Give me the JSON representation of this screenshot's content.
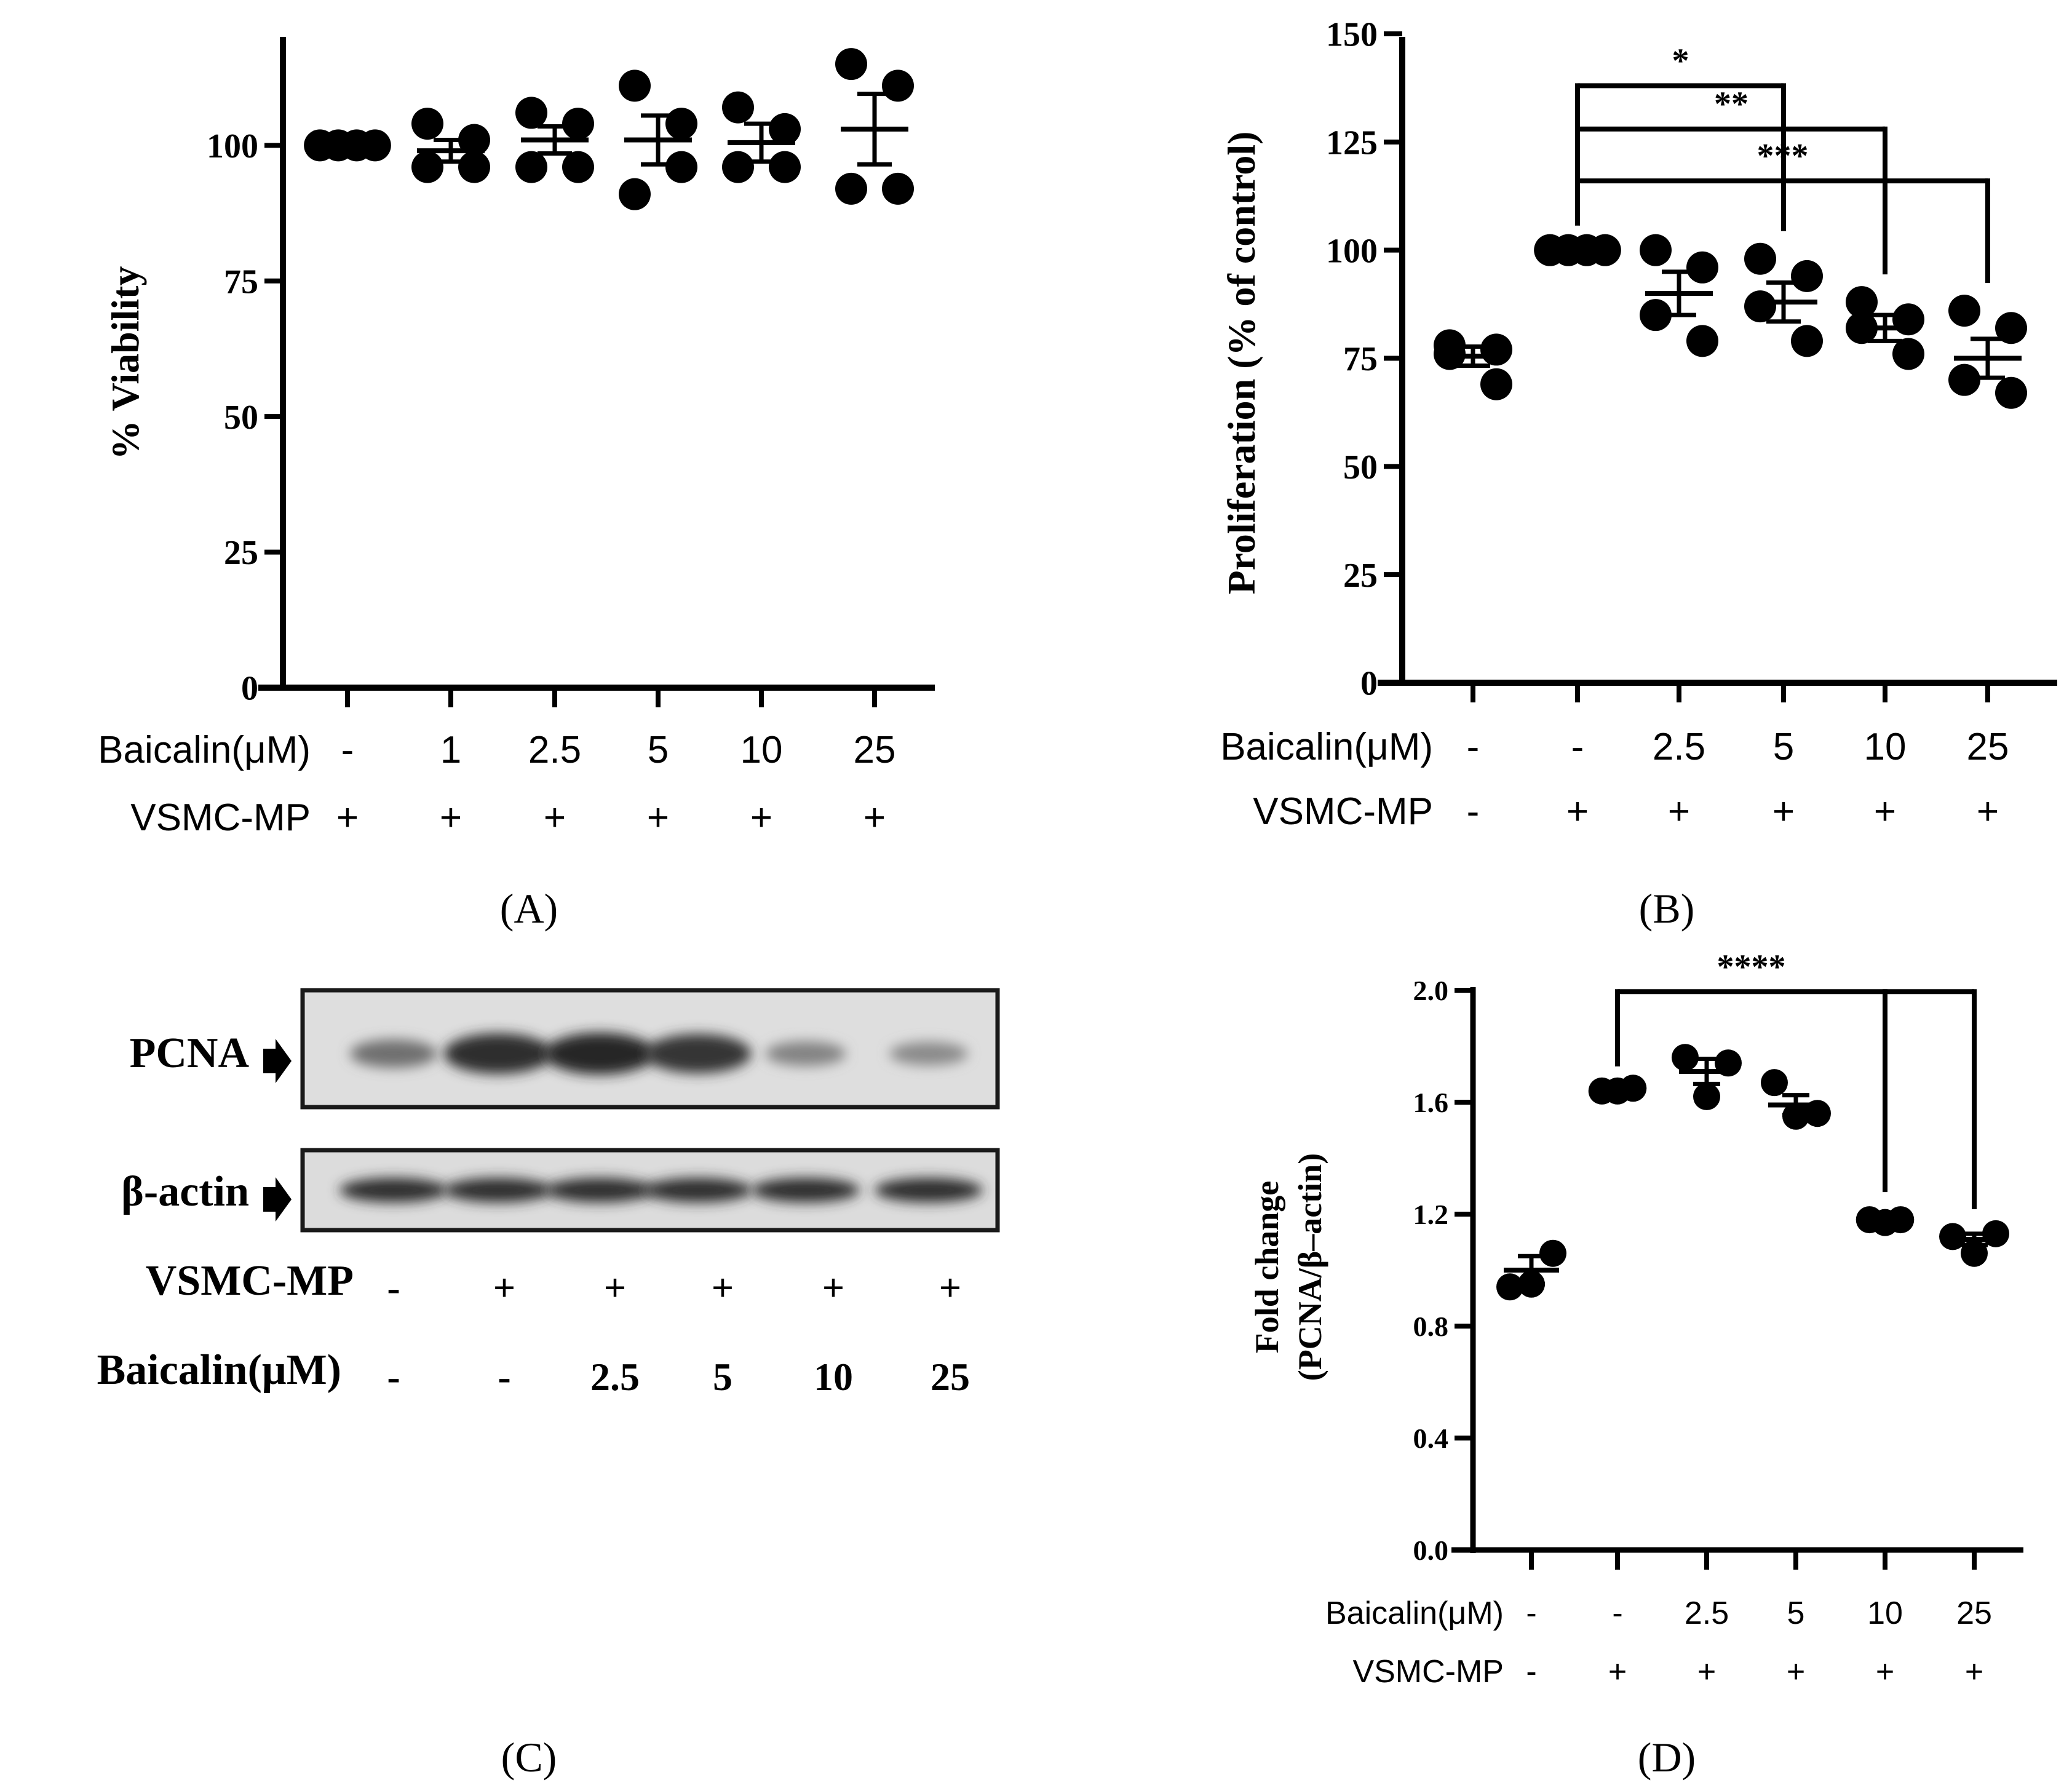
{
  "colors": {
    "ink": "#000000",
    "blot_frame": "#1a1a1a",
    "blot_bg": "#dedede"
  },
  "chart_data": [
    {
      "panel": "(A)",
      "type": "scatter",
      "ylabel": "% Viability",
      "xlabel": "",
      "ylim": [
        0,
        120
      ],
      "yticks": [
        "0",
        "25",
        "50",
        "75",
        "100"
      ],
      "row_labels": [
        "Baicalin(μM)",
        "VSMC-MP"
      ],
      "rows": [
        [
          "-",
          "1",
          "2.5",
          "5",
          "10",
          "25"
        ],
        [
          "+",
          "+",
          "+",
          "+",
          "+",
          "+"
        ]
      ],
      "points": [
        [
          100,
          100,
          100,
          100
        ],
        [
          104,
          96,
          96,
          101
        ],
        [
          106,
          96,
          96,
          104
        ],
        [
          111,
          104,
          91,
          96
        ],
        [
          107,
          96,
          96,
          103
        ],
        [
          115,
          111,
          92,
          92
        ]
      ],
      "mean": [
        100,
        99,
        101,
        101,
        100.5,
        103
      ],
      "sem": [
        0,
        2,
        2.5,
        4.5,
        3.5,
        6.5
      ],
      "significance": []
    },
    {
      "panel": "(B)",
      "type": "scatter",
      "ylabel": "Proliferation (% of control)",
      "xlabel": "",
      "ylim": [
        0,
        150
      ],
      "yticks": [
        "0",
        "25",
        "50",
        "75",
        "100",
        "125",
        "150"
      ],
      "row_labels": [
        "Baicalin(μM)",
        "VSMC-MP"
      ],
      "rows": [
        [
          "-",
          "-",
          "2.5",
          "5",
          "10",
          "25"
        ],
        [
          "-",
          "+",
          "+",
          "+",
          "+",
          "+"
        ]
      ],
      "points": [
        [
          78,
          69,
          76,
          77
        ],
        [
          100,
          100,
          100,
          100
        ],
        [
          100,
          96,
          85,
          79
        ],
        [
          98,
          94,
          87,
          79
        ],
        [
          88,
          84,
          82,
          76
        ],
        [
          86,
          82,
          70,
          67
        ]
      ],
      "mean": [
        75.5,
        100,
        90,
        88,
        82,
        75
      ],
      "sem": [
        2.2,
        0,
        5,
        4.5,
        3,
        4.5
      ],
      "significance": [
        {
          "from": 1,
          "to": 3,
          "label": "*",
          "level": 138
        },
        {
          "from": 1,
          "to": 4,
          "label": "**",
          "level": 128
        },
        {
          "from": 1,
          "to": 5,
          "label": "***",
          "level": 116
        }
      ]
    },
    {
      "panel": "(D)",
      "type": "scatter",
      "ylabel": "Fold change (PCNA/β-actin)",
      "ylabel_lines": [
        "Fold change",
        "(PCNA/β–actin)"
      ],
      "xlabel": "",
      "ylim": [
        0,
        2.0
      ],
      "yticks": [
        "0.0",
        "0.4",
        "0.8",
        "1.2",
        "1.6",
        "2.0"
      ],
      "row_labels": [
        "Baicalin(μM)",
        "VSMC-MP"
      ],
      "rows": [
        [
          "-",
          "-",
          "2.5",
          "5",
          "10",
          "25"
        ],
        [
          "-",
          "+",
          "+",
          "+",
          "+",
          "+"
        ]
      ],
      "points": [
        [
          0.94,
          1.06,
          0.95
        ],
        [
          1.64,
          1.64,
          1.65
        ],
        [
          1.76,
          1.74,
          1.62
        ],
        [
          1.67,
          1.56,
          1.55
        ],
        [
          1.18,
          1.17,
          1.18
        ],
        [
          1.12,
          1.13,
          1.06
        ]
      ],
      "mean": [
        1.0,
        1.64,
        1.71,
        1.59,
        1.18,
        1.11
      ],
      "sem": [
        0.05,
        0,
        0.045,
        0.035,
        0,
        0.02
      ],
      "significance": [
        {
          "from": 1,
          "to": 4,
          "label": "****",
          "level": 1.995,
          "joined_to": 5
        }
      ]
    }
  ],
  "blot": {
    "rows": [
      "PCNA",
      "β-actin"
    ],
    "treatment_rows": [
      {
        "label": "VSMC-MP",
        "values": [
          "-",
          "+",
          "+",
          "+",
          "+",
          "+"
        ]
      },
      {
        "label": "Baicalin(μM)",
        "values": [
          "-",
          "-",
          "2.5",
          "5",
          "10",
          "25"
        ]
      }
    ],
    "pcna_intensity": [
      0.45,
      0.95,
      1.0,
      0.9,
      0.3,
      0.25
    ],
    "actin_intensity": [
      0.95,
      0.95,
      0.95,
      0.95,
      0.95,
      0.95
    ]
  },
  "panels": {
    "a": "(A)",
    "b": "(B)",
    "c": "(C)",
    "d": "(D)"
  }
}
